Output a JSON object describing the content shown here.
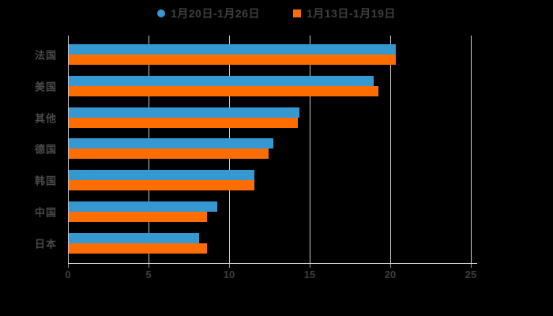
{
  "chart_data": {
    "type": "bar",
    "orientation": "horizontal",
    "title": "",
    "categories": [
      "法国",
      "美国",
      "其他",
      "德国",
      "韩国",
      "中国",
      "日本"
    ],
    "series": [
      {
        "name": "1月20日-1月26日",
        "marker": "circle",
        "color": "#3698d0",
        "values": [
          20.3,
          18.9,
          14.3,
          12.7,
          11.5,
          9.2,
          8.1
        ]
      },
      {
        "name": "1月13日-1月19日",
        "marker": "square",
        "color": "#ff6c00",
        "values": [
          20.3,
          19.2,
          14.2,
          12.4,
          11.5,
          8.6,
          8.6
        ]
      }
    ],
    "xlim": [
      0,
      25
    ],
    "xticks": [
      0,
      5,
      10,
      15,
      20,
      25
    ],
    "grid": true,
    "legend_position": "top"
  },
  "colors": {
    "background": "#000000",
    "text": "#3f3f3f",
    "category_text": "#4a4a4a",
    "gridline": "#c9c9c9",
    "axis_line": "#d4d4d4",
    "tick_mark": "#8f8f8f"
  }
}
